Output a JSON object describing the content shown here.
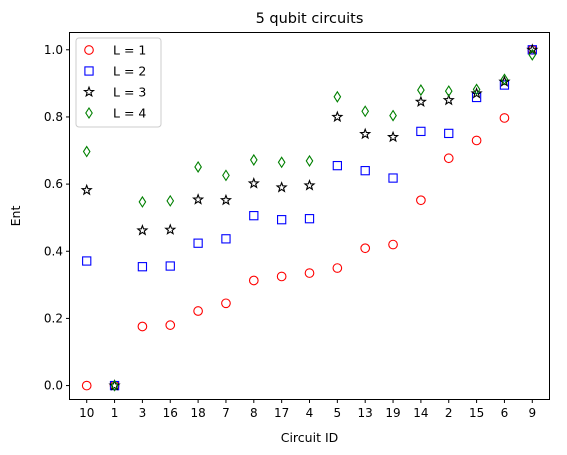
{
  "chart_data": {
    "type": "scatter",
    "title": "5 qubit circuits",
    "xlabel": "Circuit ID",
    "ylabel": "Ent",
    "categories": [
      "10",
      "1",
      "3",
      "16",
      "18",
      "7",
      "8",
      "17",
      "4",
      "5",
      "13",
      "19",
      "14",
      "2",
      "15",
      "6",
      "9"
    ],
    "ylim": [
      -0.04,
      1.05
    ],
    "yticks": [
      "0.0",
      "0.2",
      "0.4",
      "0.6",
      "0.8",
      "1.0"
    ],
    "grid": false,
    "legend_position": "top-left",
    "series": [
      {
        "name": "L = 1",
        "marker": "circle",
        "color": "#ff0000",
        "values": [
          0.0,
          0.0,
          0.176,
          0.18,
          0.222,
          0.245,
          0.313,
          0.325,
          0.335,
          0.35,
          0.409,
          0.42,
          0.552,
          0.677,
          0.73,
          0.797,
          1.0
        ]
      },
      {
        "name": "L = 2",
        "marker": "square",
        "color": "#0000ff",
        "values": [
          0.371,
          0.0,
          0.354,
          0.356,
          0.424,
          0.437,
          0.506,
          0.494,
          0.497,
          0.655,
          0.64,
          0.618,
          0.757,
          0.751,
          0.858,
          0.895,
          1.0
        ]
      },
      {
        "name": "L = 3",
        "marker": "star",
        "color": "#000000",
        "values": [
          0.582,
          0.0,
          0.462,
          0.464,
          0.554,
          0.552,
          0.602,
          0.59,
          0.596,
          0.8,
          0.749,
          0.74,
          0.845,
          0.85,
          0.87,
          0.905,
          1.0
        ]
      },
      {
        "name": "L = 4",
        "marker": "thin_diamond",
        "color": "#008000",
        "values": [
          0.697,
          0.0,
          0.547,
          0.55,
          0.651,
          0.626,
          0.672,
          0.665,
          0.669,
          0.86,
          0.817,
          0.804,
          0.88,
          0.877,
          0.882,
          0.912,
          0.985
        ]
      }
    ]
  }
}
